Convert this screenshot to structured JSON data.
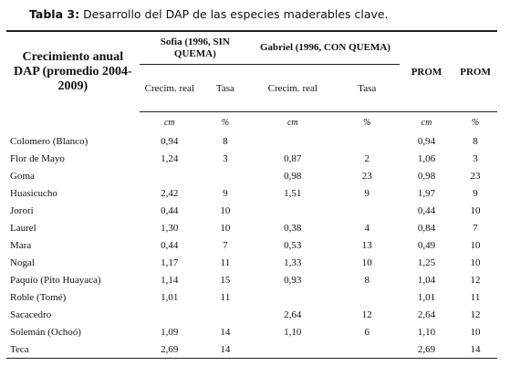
{
  "title": {
    "label": "Tabla 3:",
    "text": "Desarrollo del DAP de las especies maderables clave."
  },
  "table": {
    "row_header": "Crecimiento anual DAP (promedio 2004-2009)",
    "groups": [
      "Sofia (1996, SIN QUEMA)",
      "Gabriel (1996, CON QUEMA)"
    ],
    "prom": [
      "PROM",
      "PROM"
    ],
    "subheaders": [
      "Crecim. real",
      "Tasa",
      "Crecim. real",
      "Tasa"
    ],
    "units": [
      "cm",
      "%",
      "cm",
      "%",
      "cm",
      "%"
    ],
    "rows": [
      [
        "Colomero (Blanco)",
        "0,94",
        "8",
        null,
        null,
        "0,94",
        "8"
      ],
      [
        "Flor de Mayo",
        "1,24",
        "3",
        "0,87",
        "2",
        "1,06",
        "3"
      ],
      [
        "Goma",
        null,
        null,
        "0,98",
        "23",
        "0,98",
        "23"
      ],
      [
        "Huasicucho",
        "2,42",
        "9",
        "1,51",
        "9",
        "1,97",
        "9"
      ],
      [
        "Jorori",
        "0,44",
        "10",
        null,
        null,
        "0,44",
        "10"
      ],
      [
        "Laurel",
        "1,30",
        "10",
        "0,38",
        "4",
        "0,84",
        "7"
      ],
      [
        "Mara",
        "0,44",
        "7",
        "0,53",
        "13",
        "0,49",
        "10"
      ],
      [
        "Nogal",
        "1,17",
        "11",
        "1,33",
        "10",
        "1,25",
        "10"
      ],
      [
        "Paquío (Pito Huayaca)",
        "1,14",
        "15",
        "0,93",
        "8",
        "1,04",
        "12"
      ],
      [
        "Roble (Tomé)",
        "1,01",
        "11",
        null,
        null,
        "1,01",
        "11"
      ],
      [
        "Sacacedro",
        null,
        null,
        "2,64",
        "12",
        "2,64",
        "12"
      ],
      [
        "Solemán (Ochoó)",
        "1,09",
        "14",
        "1,10",
        "6",
        "1,10",
        "10"
      ],
      [
        "Teca",
        "2,69",
        "14",
        null,
        null,
        "2,69",
        "14"
      ]
    ]
  }
}
